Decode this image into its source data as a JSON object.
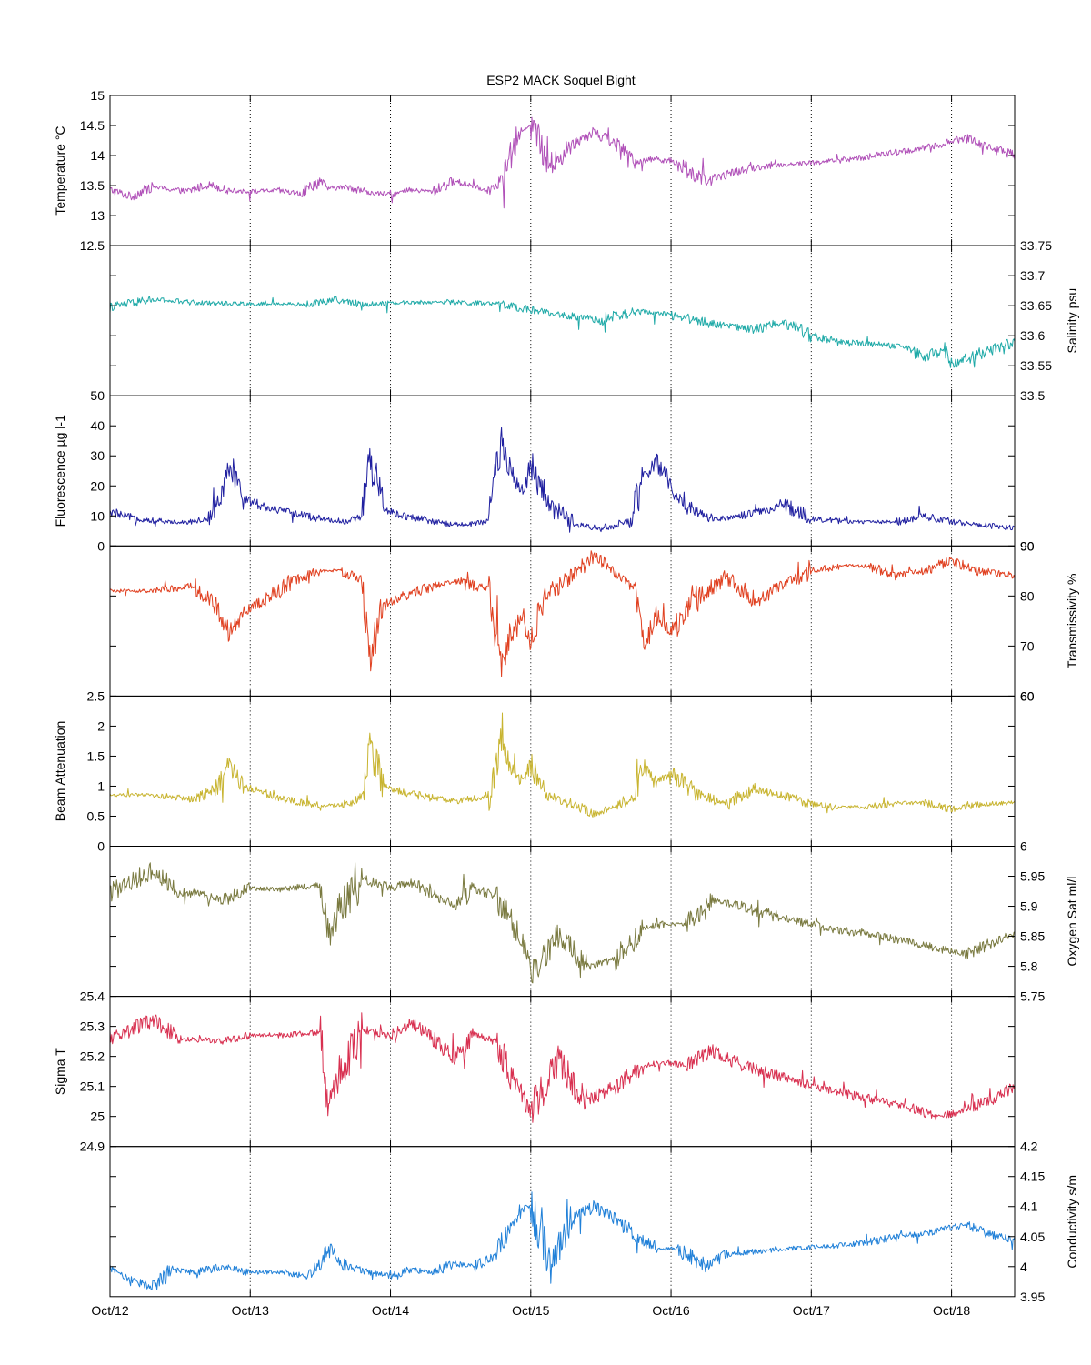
{
  "figure_title": "ESP2 MACK  Soquel Bight",
  "x_tick_labels": [
    "Oct/12",
    "Oct/13",
    "Oct/14",
    "Oct/15",
    "Oct/16",
    "Oct/17",
    "Oct/18"
  ],
  "chart_data": [
    {
      "type": "line",
      "ylabel": "Temperature °C",
      "axis_side": "left",
      "ylim": [
        12.5,
        15
      ],
      "yticks": [
        13,
        13.5,
        14,
        14.5,
        15
      ],
      "ytick_labels": [
        "13",
        "13.5",
        "14",
        "14.5",
        "15"
      ],
      "bottom_label": "12.5",
      "xlim": [
        0,
        6.45
      ],
      "x_ticks": [
        0,
        1,
        2,
        3,
        4,
        5,
        6
      ],
      "grid": "x-dotted",
      "color": "#b050b8",
      "x": [
        0,
        0.15,
        0.3,
        0.4,
        0.55,
        0.7,
        0.85,
        1.0,
        1.2,
        1.35,
        1.5,
        1.55,
        1.7,
        1.85,
        2.0,
        2.15,
        2.3,
        2.45,
        2.6,
        2.7,
        2.8,
        2.9,
        2.95,
        3.0,
        3.15,
        3.3,
        3.45,
        3.6,
        3.75,
        3.9,
        4.05,
        4.25,
        4.4,
        4.6,
        4.8,
        5.0,
        5.2,
        5.4,
        5.6,
        5.8,
        5.95,
        6.1,
        6.25,
        6.45
      ],
      "values": [
        13.43,
        13.32,
        13.48,
        13.45,
        13.4,
        13.52,
        13.42,
        13.4,
        13.42,
        13.36,
        13.58,
        13.45,
        13.48,
        13.38,
        13.35,
        13.42,
        13.4,
        13.57,
        13.5,
        13.42,
        13.62,
        14.25,
        14.45,
        14.53,
        13.8,
        14.2,
        14.4,
        14.2,
        13.9,
        13.95,
        13.88,
        13.55,
        13.7,
        13.8,
        13.85,
        13.88,
        13.92,
        13.98,
        14.05,
        14.12,
        14.2,
        14.3,
        14.15,
        14.0
      ]
    },
    {
      "type": "line",
      "ylabel": "Salinity psu",
      "axis_side": "right",
      "ylim": [
        33.5,
        33.75
      ],
      "yticks": [
        33.55,
        33.6,
        33.65,
        33.7,
        33.75
      ],
      "ytick_labels": [
        "33.55",
        "33.6",
        "33.65",
        "33.7",
        "33.75"
      ],
      "bottom_label": "33.5",
      "xlim": [
        0,
        6.45
      ],
      "x_ticks": [
        0,
        1,
        2,
        3,
        4,
        5,
        6
      ],
      "grid": "x-dotted",
      "color": "#20aaa8",
      "x": [
        0,
        0.3,
        0.6,
        1.0,
        1.4,
        1.6,
        1.8,
        2.0,
        2.4,
        2.8,
        3.0,
        3.2,
        3.5,
        3.75,
        4.0,
        4.3,
        4.6,
        4.8,
        5.0,
        5.2,
        5.5,
        5.7,
        5.8,
        5.95,
        6.0,
        6.2,
        6.45
      ],
      "values": [
        33.648,
        33.66,
        33.655,
        33.653,
        33.652,
        33.66,
        33.652,
        33.655,
        33.656,
        33.652,
        33.643,
        33.635,
        33.625,
        33.64,
        33.635,
        33.62,
        33.61,
        33.625,
        33.6,
        33.59,
        33.585,
        33.58,
        33.56,
        33.58,
        33.55,
        33.57,
        33.59
      ]
    },
    {
      "type": "line",
      "ylabel": "Fluorescence µg l-1",
      "axis_side": "left",
      "ylim": [
        0,
        50
      ],
      "yticks": [
        10,
        20,
        30,
        40
      ],
      "ytick_labels": [
        "10",
        "20",
        "30",
        "40"
      ],
      "bottom_label": "0",
      "top_label": "50",
      "xlim": [
        0,
        6.45
      ],
      "x_ticks": [
        0,
        1,
        2,
        3,
        4,
        5,
        6
      ],
      "grid": "x-dotted",
      "color": "#2020a0",
      "x": [
        0,
        0.2,
        0.4,
        0.55,
        0.7,
        0.8,
        0.85,
        0.95,
        1.1,
        1.3,
        1.5,
        1.7,
        1.8,
        1.85,
        1.95,
        2.1,
        2.3,
        2.5,
        2.7,
        2.8,
        2.85,
        2.95,
        3.0,
        3.1,
        3.3,
        3.5,
        3.7,
        3.8,
        3.9,
        4.0,
        4.15,
        4.3,
        4.5,
        4.7,
        4.8,
        5.0,
        5.3,
        5.6,
        5.8,
        6.0,
        6.2,
        6.45
      ],
      "values": [
        11,
        9,
        8,
        8,
        9,
        18,
        26,
        16,
        13,
        11,
        9,
        8,
        10,
        30,
        12,
        10,
        8,
        7,
        8,
        38,
        25,
        18,
        28,
        15,
        7,
        6,
        8,
        22,
        28,
        20,
        12,
        9,
        10,
        12,
        14,
        9,
        8,
        8,
        10,
        8,
        7,
        6
      ]
    },
    {
      "type": "line",
      "ylabel": "Transmissivity %",
      "axis_side": "right",
      "ylim": [
        60,
        90
      ],
      "yticks": [
        60,
        70,
        80,
        90
      ],
      "ytick_labels": [
        "60",
        "70",
        "80",
        "90"
      ],
      "bottom_label": "60",
      "top_label": "90",
      "xlim": [
        0,
        6.45
      ],
      "x_ticks": [
        0,
        1,
        2,
        3,
        4,
        5,
        6
      ],
      "grid": "x-dotted",
      "color": "#e04020",
      "x": [
        0,
        0.3,
        0.6,
        0.75,
        0.85,
        0.95,
        1.1,
        1.3,
        1.5,
        1.65,
        1.8,
        1.85,
        1.95,
        2.1,
        2.3,
        2.5,
        2.7,
        2.8,
        2.85,
        2.95,
        3.0,
        3.1,
        3.3,
        3.45,
        3.6,
        3.75,
        3.8,
        3.9,
        4.0,
        4.2,
        4.4,
        4.6,
        4.8,
        5.0,
        5.2,
        5.4,
        5.6,
        5.8,
        6.0,
        6.2,
        6.45
      ],
      "values": [
        81,
        81,
        82,
        78,
        72,
        77,
        79,
        83,
        85,
        85,
        83,
        67,
        78,
        80,
        82,
        83,
        81,
        65,
        72,
        77,
        70,
        80,
        84,
        88,
        85,
        82,
        70,
        76,
        73,
        80,
        84,
        79,
        82,
        85,
        86,
        86,
        84,
        85,
        87,
        85,
        84
      ]
    },
    {
      "type": "line",
      "ylabel": "Beam Attenuation",
      "axis_side": "left",
      "ylim": [
        0,
        2.5
      ],
      "yticks": [
        0.5,
        1,
        1.5,
        2
      ],
      "ytick_labels": [
        "0.5",
        "1",
        "1.5",
        "2"
      ],
      "bottom_label": "0",
      "top_label": "2.5",
      "xlim": [
        0,
        6.45
      ],
      "x_ticks": [
        0,
        1,
        2,
        3,
        4,
        5,
        6
      ],
      "grid": "x-dotted",
      "color": "#c8b430",
      "x": [
        0,
        0.3,
        0.6,
        0.75,
        0.85,
        0.95,
        1.1,
        1.3,
        1.5,
        1.65,
        1.8,
        1.85,
        1.95,
        2.1,
        2.3,
        2.5,
        2.7,
        2.8,
        2.85,
        2.95,
        3.0,
        3.1,
        3.3,
        3.45,
        3.6,
        3.75,
        3.8,
        3.9,
        4.0,
        4.2,
        4.4,
        4.6,
        4.8,
        5.0,
        5.2,
        5.4,
        5.6,
        5.8,
        6.0,
        6.2,
        6.45
      ],
      "values": [
        0.85,
        0.85,
        0.78,
        0.95,
        1.35,
        1.0,
        0.9,
        0.75,
        0.68,
        0.68,
        0.8,
        1.75,
        1.0,
        0.9,
        0.8,
        0.75,
        0.85,
        1.8,
        1.3,
        1.0,
        1.4,
        0.85,
        0.7,
        0.55,
        0.65,
        0.85,
        1.4,
        1.05,
        1.2,
        0.85,
        0.7,
        0.95,
        0.85,
        0.7,
        0.65,
        0.65,
        0.72,
        0.72,
        0.62,
        0.7,
        0.72
      ]
    },
    {
      "type": "line",
      "ylabel": "Oxygen Sat ml/l",
      "axis_side": "right",
      "ylim": [
        5.75,
        6
      ],
      "yticks": [
        5.8,
        5.85,
        5.9,
        5.95,
        6
      ],
      "ytick_labels": [
        "5.8",
        "5.85",
        "5.9",
        "5.95",
        "6"
      ],
      "bottom_label": "5.75",
      "xlim": [
        0,
        6.45
      ],
      "x_ticks": [
        0,
        1,
        2,
        3,
        4,
        5,
        6
      ],
      "grid": "x-dotted",
      "color": "#7a7a40",
      "x": [
        0,
        0.3,
        0.5,
        0.8,
        1.0,
        1.2,
        1.5,
        1.55,
        1.8,
        2.0,
        2.15,
        2.3,
        2.45,
        2.6,
        2.75,
        2.9,
        3.0,
        3.2,
        3.4,
        3.6,
        3.8,
        3.95,
        4.1,
        4.3,
        4.5,
        4.8,
        5.0,
        5.2,
        5.5,
        5.7,
        5.9,
        6.1,
        6.3,
        6.45
      ],
      "values": [
        5.922,
        5.96,
        5.925,
        5.91,
        5.93,
        5.928,
        5.935,
        5.86,
        5.945,
        5.93,
        5.94,
        5.92,
        5.9,
        5.93,
        5.915,
        5.86,
        5.79,
        5.85,
        5.8,
        5.81,
        5.86,
        5.87,
        5.87,
        5.91,
        5.9,
        5.88,
        5.87,
        5.86,
        5.85,
        5.84,
        5.83,
        5.82,
        5.84,
        5.855
      ]
    },
    {
      "type": "line",
      "ylabel": "Sigma T",
      "axis_side": "left",
      "ylim": [
        24.9,
        25.4
      ],
      "yticks": [
        25,
        25.1,
        25.2,
        25.3,
        25.4
      ],
      "ytick_labels": [
        "25",
        "25.1",
        "25.2",
        "25.3",
        "25.4"
      ],
      "bottom_label": "24.9",
      "xlim": [
        0,
        6.45
      ],
      "x_ticks": [
        0,
        1,
        2,
        3,
        4,
        5,
        6
      ],
      "grid": "x-dotted",
      "color": "#d83050",
      "x": [
        0,
        0.3,
        0.5,
        0.8,
        1.0,
        1.2,
        1.5,
        1.55,
        1.8,
        2.0,
        2.15,
        2.3,
        2.45,
        2.6,
        2.75,
        2.9,
        3.0,
        3.2,
        3.4,
        3.6,
        3.8,
        3.95,
        4.1,
        4.3,
        4.5,
        4.8,
        5.0,
        5.2,
        5.5,
        5.7,
        5.9,
        6.1,
        6.3,
        6.45
      ],
      "values": [
        25.26,
        25.32,
        25.26,
        25.25,
        25.27,
        25.27,
        25.28,
        25.05,
        25.29,
        25.27,
        25.31,
        25.26,
        25.2,
        25.27,
        25.25,
        25.1,
        25.02,
        25.18,
        25.05,
        25.1,
        25.17,
        25.18,
        25.17,
        25.22,
        25.17,
        25.13,
        25.1,
        25.08,
        25.05,
        25.03,
        25.0,
        25.02,
        25.06,
        25.1
      ]
    },
    {
      "type": "line",
      "ylabel": "Conductivity s/m",
      "axis_side": "right",
      "ylim": [
        3.95,
        4.2
      ],
      "yticks": [
        4,
        4.05,
        4.1,
        4.15,
        4.2
      ],
      "ytick_labels": [
        "4",
        "4.05",
        "4.1",
        "4.15",
        "4.2"
      ],
      "bottom_label": "3.95",
      "xlim": [
        0,
        6.45
      ],
      "x_ticks": [
        0,
        1,
        2,
        3,
        4,
        5,
        6
      ],
      "grid": "x-dotted",
      "color": "#2080d8",
      "x": [
        0,
        0.15,
        0.3,
        0.45,
        0.6,
        0.8,
        1.0,
        1.2,
        1.4,
        1.5,
        1.55,
        1.7,
        1.85,
        2.0,
        2.15,
        2.3,
        2.45,
        2.6,
        2.75,
        2.85,
        2.95,
        3.0,
        3.15,
        3.3,
        3.45,
        3.6,
        3.75,
        3.9,
        4.05,
        4.25,
        4.4,
        4.6,
        4.8,
        5.0,
        5.2,
        5.4,
        5.6,
        5.8,
        5.95,
        6.1,
        6.25,
        6.45
      ],
      "values": [
        3.995,
        3.98,
        3.965,
        3.995,
        3.99,
        4.0,
        3.99,
        3.992,
        3.985,
        4.005,
        4.03,
        4.0,
        3.99,
        3.985,
        3.995,
        3.99,
        4.005,
        4.0,
        4.02,
        4.07,
        4.1,
        4.1,
        4.0,
        4.08,
        4.1,
        4.08,
        4.05,
        4.03,
        4.03,
        4.0,
        4.02,
        4.025,
        4.03,
        4.032,
        4.035,
        4.04,
        4.05,
        4.055,
        4.062,
        4.07,
        4.055,
        4.045
      ]
    }
  ]
}
